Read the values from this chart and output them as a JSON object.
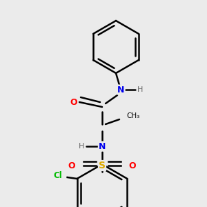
{
  "bg_color": "#ebebeb",
  "bond_color": "#000000",
  "atom_colors": {
    "N": "#0000ee",
    "O": "#ff0000",
    "S": "#ddaa00",
    "Cl": "#00bb00",
    "C": "#000000",
    "H": "#666666"
  },
  "figsize": [
    3.0,
    3.0
  ],
  "dpi": 100
}
